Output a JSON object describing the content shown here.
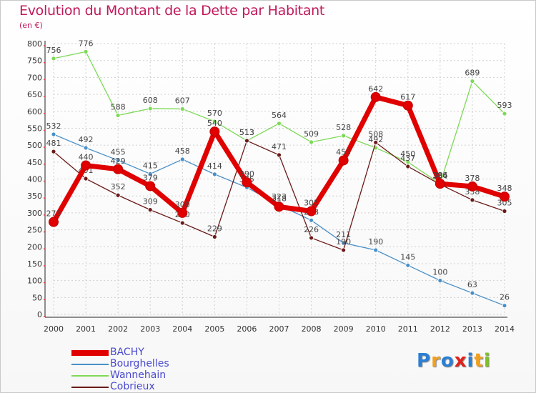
{
  "title": "Evolution du Montant de la Dette par Habitant",
  "subtitle": "(en €)",
  "logo": {
    "text": "Proxiti",
    "colors": [
      "#2a7fd4",
      "#f0a020",
      "#2a7fd4",
      "#e0201c",
      "#2a7fd4",
      "#f0a020",
      "#7cc31f"
    ]
  },
  "chart_data": {
    "type": "line",
    "x": [
      "2000",
      "2001",
      "2002",
      "2003",
      "2004",
      "2005",
      "2006",
      "2007",
      "2008",
      "2009",
      "2010",
      "2011",
      "2012",
      "2013",
      "2014"
    ],
    "ylim": [
      0,
      800
    ],
    "yticks": [
      0,
      50,
      100,
      150,
      200,
      250,
      300,
      350,
      400,
      450,
      500,
      550,
      600,
      650,
      700,
      750,
      800
    ],
    "grid": true,
    "legend_position": "bottom-left",
    "series": [
      {
        "name": "Wannehain",
        "color": "#7ed957",
        "values": [
          756,
          776,
          588,
          608,
          607,
          570,
          513,
          564,
          509,
          528,
          492,
          450,
          386,
          689,
          593
        ],
        "labels": [
          "756",
          "776",
          "588",
          "608",
          "607",
          "570",
          "513",
          "564",
          "509",
          "528",
          "492",
          "450",
          "386",
          "689",
          "593"
        ]
      },
      {
        "name": "Bourghelles",
        "color": "#4a90c8",
        "values": [
          532,
          492,
          455,
          415,
          458,
          414,
          375,
          323,
          278,
          211,
          190,
          145,
          100,
          63,
          26
        ],
        "labels": [
          "532",
          "492",
          "455",
          "415",
          "458",
          "414",
          "375",
          "323",
          "278",
          "211",
          "190",
          "145",
          "100",
          "63",
          "26"
        ]
      },
      {
        "name": "Cobrieux",
        "color": "#6b1a1a",
        "values": [
          481,
          401,
          352,
          309,
          270,
          229,
          513,
          471,
          226,
          190,
          508,
          437,
          384,
          338,
          305
        ],
        "labels": [
          "481",
          "401",
          "352",
          "309",
          "270",
          "229",
          "513",
          "471",
          "226",
          "190",
          "508",
          "437",
          "384",
          "338",
          "305"
        ]
      },
      {
        "name": "BACHY",
        "color": "#e00000",
        "values": [
          273,
          440,
          429,
          379,
          300,
          540,
          390,
          318,
          305,
          455,
          642,
          617,
          386,
          378,
          348
        ],
        "labels": [
          "273",
          "440",
          "429",
          "379",
          "300",
          "540",
          "390",
          "318",
          "305",
          "455",
          "642",
          "617",
          "386",
          "378",
          "348"
        ]
      }
    ],
    "legend_order": [
      "BACHY",
      "Bourghelles",
      "Wannehain",
      "Cobrieux"
    ]
  }
}
